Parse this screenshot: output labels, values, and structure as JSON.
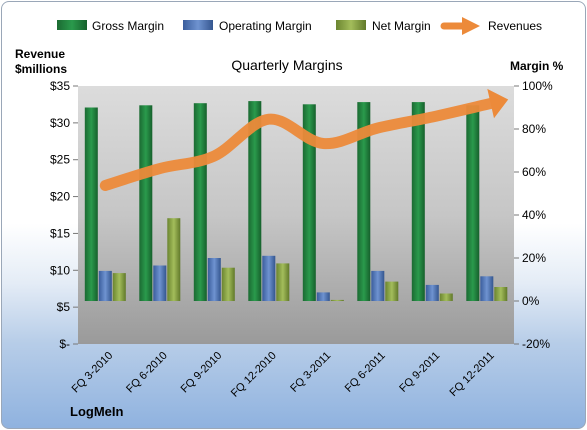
{
  "chart_data": {
    "type": "bar",
    "title": "Quarterly Margins",
    "company": "LogMeIn",
    "categories": [
      "FQ 3-2010",
      "FQ 6-2010",
      "FQ 9-2010",
      "FQ 12-2010",
      "FQ 3-2011",
      "FQ 6-2011",
      "FQ 9-2011",
      "FQ 12-2011"
    ],
    "left_axis": {
      "label_line1": "Revenue",
      "label_line2": "$millions",
      "range": [
        0,
        35
      ],
      "ticks": [
        0,
        5,
        10,
        15,
        20,
        25,
        30,
        35
      ],
      "tick_labels": [
        "$-",
        "$5",
        "$10",
        "$15",
        "$20",
        "$25",
        "$30",
        "$35"
      ]
    },
    "right_axis": {
      "label": "Margin %",
      "range": [
        -20,
        100
      ],
      "ticks": [
        -20,
        0,
        20,
        40,
        60,
        80,
        100
      ],
      "tick_labels": [
        "-20%",
        "0%",
        "20%",
        "40%",
        "60%",
        "80%",
        "100%"
      ]
    },
    "series": [
      {
        "name": "Gross Margin",
        "type": "bar",
        "axis": "right",
        "color": "#1f7a3a",
        "values": [
          90,
          91,
          92,
          93,
          91.5,
          92.5,
          92.5,
          91
        ]
      },
      {
        "name": "Operating Margin",
        "type": "bar",
        "axis": "right",
        "color": "#4a6fb2",
        "values": [
          14,
          16.5,
          20,
          21,
          4,
          14,
          7.5,
          11.5
        ]
      },
      {
        "name": "Net Margin",
        "type": "bar",
        "axis": "right",
        "color": "#7f9a3a",
        "values": [
          13,
          38.5,
          15.5,
          17.5,
          0.5,
          9,
          3.5,
          6.5
        ]
      },
      {
        "name": "Revenues",
        "type": "line",
        "axis": "left",
        "color": "#ec8a3a",
        "values": [
          21.5,
          23.8,
          25.5,
          30.5,
          27.2,
          29.3,
          30.8,
          32.5
        ]
      }
    ],
    "legend_position": "top",
    "grid": false
  }
}
